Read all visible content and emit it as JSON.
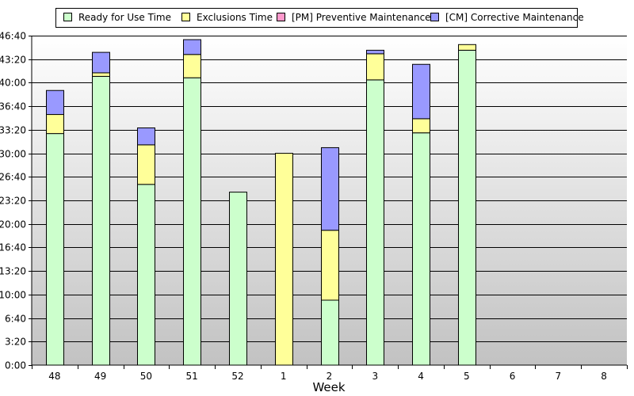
{
  "chart_data": {
    "type": "bar",
    "stacked": true,
    "xlabel": "Week",
    "ylabel": "",
    "y_unit": "hours",
    "ylim": [
      0,
      46.667
    ],
    "y_ticks": [
      0,
      3.333,
      6.667,
      10,
      13.333,
      16.667,
      20,
      23.333,
      26.667,
      30,
      33.333,
      36.667,
      40,
      43.333,
      46.667
    ],
    "y_tick_labels": [
      "0:00",
      "3:20",
      "6:40",
      "10:00",
      "13:20",
      "16:40",
      "20:00",
      "23:20",
      "26:40",
      "30:00",
      "33:20",
      "36:40",
      "40:00",
      "43:20",
      "46:40"
    ],
    "categories": [
      "48",
      "49",
      "50",
      "51",
      "52",
      "1",
      "2",
      "3",
      "4",
      "5",
      "6",
      "7",
      "8"
    ],
    "legend_position": "top",
    "grid": true,
    "series": [
      {
        "name": "Ready for Use Time",
        "color": "#ccffcc",
        "values": [
          32.8,
          40.9,
          25.6,
          40.7,
          24.5,
          0,
          9.2,
          40.4,
          32.9,
          44.6,
          0,
          0,
          0
        ]
      },
      {
        "name": "Exclusions Time",
        "color": "#ffff99",
        "values": [
          2.7,
          0.5,
          5.6,
          3.3,
          0,
          30.0,
          9.9,
          3.7,
          2.0,
          0.8,
          0,
          0,
          0
        ]
      },
      {
        "name": "[PM] Preventive Maintenance",
        "color": "#ff99cc",
        "values": [
          0,
          0,
          0,
          0,
          0,
          0,
          0,
          0,
          0,
          0,
          0,
          0,
          0
        ]
      },
      {
        "name": "[CM] Corrective Maintenance",
        "color": "#9999ff",
        "values": [
          3.4,
          2.9,
          2.4,
          2.1,
          0,
          0,
          11.7,
          0.5,
          7.7,
          0,
          0,
          0,
          0
        ]
      }
    ]
  }
}
